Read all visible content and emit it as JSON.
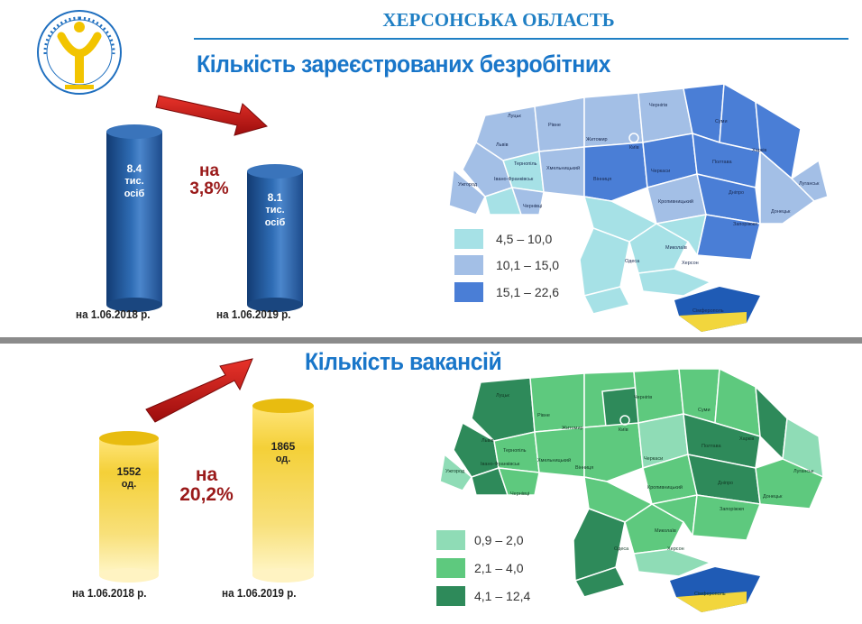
{
  "header": {
    "region": "ХЕРСОНСЬКА ОБЛАСТЬ",
    "logo_text": "ДЕРЖАВНА СЛУЖБА ЗАЙНЯТОСТІ"
  },
  "unemployed": {
    "title": "Кількість зареєстрованих безробітних",
    "left_value": "8.4",
    "left_unit_1": "тис.",
    "left_unit_2": "осіб",
    "right_value": "8.1",
    "right_unit_1": "тис.",
    "right_unit_2": "осіб",
    "change_word": "на",
    "change_pct": "3,8%",
    "date_left": "на 1.06.2018 р.",
    "date_right": "на 1.06.2019 р.",
    "legend": [
      {
        "label": "4,5 – 10,0",
        "color": "#a6e1e6"
      },
      {
        "label": "10,1 – 15,0",
        "color": "#a3bfe6"
      },
      {
        "label": "15,1 – 22,6",
        "color": "#4a7ed6"
      }
    ]
  },
  "vacancies": {
    "title": "Кількість вакансій",
    "left_value": "1552",
    "left_unit": "од.",
    "right_value": "1865",
    "right_unit": "од.",
    "change_word": "на",
    "change_pct": "20,2%",
    "date_left": "на 1.06.2018 р.",
    "date_right": "на 1.06.2019 р.",
    "legend": [
      {
        "label": "0,9 – 2,0",
        "color": "#8fdcb6"
      },
      {
        "label": "2,1 – 4,0",
        "color": "#5ec97e"
      },
      {
        "label": "4,1 – 12,4",
        "color": "#2e8a5a"
      }
    ]
  },
  "map_labels": {
    "lutsk": "Луцьк",
    "rivne": "Рівне",
    "zhytomyr": "Житомир",
    "kyiv": "Київ",
    "chernihiv": "Чернігів",
    "sumy": "Суми",
    "kharkiv": "Харків",
    "poltava": "Полтава",
    "cherkasy": "Черкаси",
    "lviv": "Львів",
    "ternopil": "Тернопіль",
    "khmelnytskyi": "Хмельницький",
    "vinnytsia": "Вінниця",
    "ivano_frankivsk": "Івано-Франківськ",
    "uzhhorod": "Ужгород",
    "chernivtsi": "Чернівці",
    "kropyvnytskyi": "Кропивницький",
    "dnipro": "Дніпро",
    "luhansk": "Луганськ",
    "donetsk": "Донецьк",
    "zaporizhzhia": "Запоріжжя",
    "mykolaiv": "Миколаїв",
    "odesa": "Одеса",
    "kherson": "Херсон",
    "simferopol": "Сімферополь"
  }
}
